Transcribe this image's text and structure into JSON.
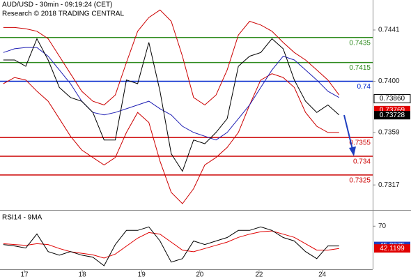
{
  "chart_data": [
    {
      "type": "line",
      "title": "AUD/USD - 30min - 09:19:24 (CET)",
      "subtitle": "Research © 2018 TRADING CENTRAL",
      "x": [
        0,
        2,
        4,
        6,
        8,
        10,
        12,
        14,
        16,
        18,
        20,
        22,
        24,
        26,
        28,
        30,
        32,
        34,
        36,
        38,
        40,
        42,
        44,
        46,
        48,
        50,
        52,
        54,
        56,
        58,
        60
      ],
      "xlim": [
        -0.6,
        66
      ],
      "ylim": [
        0.7297,
        0.7465
      ],
      "yticks": [
        0.7441,
        {
          "value": 0.74,
          "label": "0.7400"
        },
        0.7359,
        0.7317
      ],
      "series": [
        {
          "color": "#cc0000",
          "values": [
            0.7443,
            0.7443,
            0.7442,
            0.744,
            0.7434,
            0.742,
            0.7406,
            0.7392,
            0.7384,
            0.7381,
            0.7389,
            0.7415,
            0.744,
            0.7451,
            0.7457,
            0.7448,
            0.742,
            0.7387,
            0.7381,
            0.7389,
            0.7409,
            0.7437,
            0.7448,
            0.7445,
            0.744,
            0.7431,
            0.7423,
            0.7417,
            0.7409,
            0.7401,
            0.7389
          ]
        },
        {
          "color": "#cc0000",
          "values": [
            0.7398,
            0.7403,
            0.7401,
            0.7392,
            0.7384,
            0.737,
            0.7356,
            0.7345,
            0.7339,
            0.7333,
            0.7339,
            0.7359,
            0.7375,
            0.7367,
            0.7336,
            0.7311,
            0.7302,
            0.7314,
            0.7333,
            0.7339,
            0.7347,
            0.7359,
            0.7381,
            0.7401,
            0.7406,
            0.7403,
            0.7395,
            0.7375,
            0.7364,
            0.7359,
            0.7359
          ]
        },
        {
          "color": "#1f1fb4",
          "values": [
            0.7423,
            0.7426,
            0.7427,
            0.7427,
            0.742,
            0.7409,
            0.7398,
            0.7384,
            0.7375,
            0.7373,
            0.7375,
            0.7378,
            0.7381,
            0.7384,
            0.7378,
            0.7373,
            0.7364,
            0.7359,
            0.7356,
            0.7353,
            0.7359,
            0.737,
            0.7381,
            0.7395,
            0.7409,
            0.742,
            0.7417,
            0.7409,
            0.7401,
            0.7392,
            0.7387
          ]
        },
        {
          "color": "#000000",
          "values": [
            0.7417,
            0.7417,
            0.7412,
            0.7434,
            0.7417,
            0.7395,
            0.7387,
            0.7384,
            0.7375,
            0.7353,
            0.7353,
            0.7401,
            0.7398,
            0.7431,
            0.7392,
            0.7342,
            0.7328,
            0.7353,
            0.735,
            0.7359,
            0.737,
            0.7412,
            0.742,
            0.7423,
            0.7434,
            0.7426,
            0.7401,
            0.7384,
            0.7375,
            0.7381,
            0.7373
          ]
        }
      ],
      "levels": [
        {
          "value": 0.7435,
          "color": "#2e8b1e"
        },
        {
          "value": 0.7415,
          "color": "#2e8b1e"
        },
        {
          "value": 0.74,
          "color": "#0026cc"
        },
        {
          "value": 0.7355,
          "color": "#cc0000"
        },
        {
          "value": 0.734,
          "color": "#cc0000"
        },
        {
          "value": 0.7325,
          "color": "#cc0000"
        }
      ],
      "price_tags": [
        {
          "value": 0.7386,
          "label": "0.73860",
          "color": "#ffffff"
        },
        {
          "value": 0.73769,
          "label": "0.73769",
          "color": "#e00000"
        },
        {
          "value": 0.73728,
          "label": "0.73728",
          "color": "#000000"
        }
      ]
    },
    {
      "type": "line",
      "title": "RSI14 - 9MA",
      "x": [
        0,
        2,
        4,
        6,
        8,
        10,
        12,
        14,
        16,
        18,
        20,
        22,
        24,
        26,
        28,
        30,
        32,
        34,
        36,
        38,
        40,
        42,
        44,
        46,
        48,
        50,
        52,
        54,
        56,
        58,
        60
      ],
      "xlim": [
        -0.6,
        66
      ],
      "ylim": [
        16,
        89.5
      ],
      "yticks": [
        70
      ],
      "xticks": [
        {
          "value": 3.76,
          "label": "17"
        },
        {
          "value": 14.1,
          "label": "18"
        },
        {
          "value": 24.7,
          "label": "19"
        },
        {
          "value": 35.1,
          "label": "20"
        },
        {
          "value": 45.7,
          "label": "22"
        },
        {
          "value": 57.0,
          "label": "24"
        }
      ],
      "series": [
        {
          "color": "#e00000",
          "values": [
            48,
            47,
            46,
            48,
            47,
            42,
            38,
            36,
            34,
            30,
            35,
            45,
            55,
            62,
            60,
            50,
            40,
            38,
            42,
            46,
            50,
            56,
            60,
            63,
            64,
            60,
            56,
            48,
            40,
            40,
            42.1
          ]
        },
        {
          "color": "#000000",
          "values": [
            47.0,
            45.2,
            42.6,
            60.3,
            38.1,
            33.7,
            38.1,
            33.7,
            31.1,
            20.4,
            47.0,
            64.7,
            64.7,
            69.1,
            51.4,
            24.9,
            29.3,
            51.4,
            47.0,
            51.4,
            55.8,
            64.7,
            64.7,
            69.1,
            64.7,
            55.8,
            51.4,
            38.1,
            29.3,
            45.2,
            45.2
          ]
        }
      ],
      "price_tags": [
        {
          "value": 45.2375,
          "color": "#1f3fbf"
        },
        {
          "value": 42.1199,
          "color": "#e00000"
        }
      ]
    }
  ]
}
